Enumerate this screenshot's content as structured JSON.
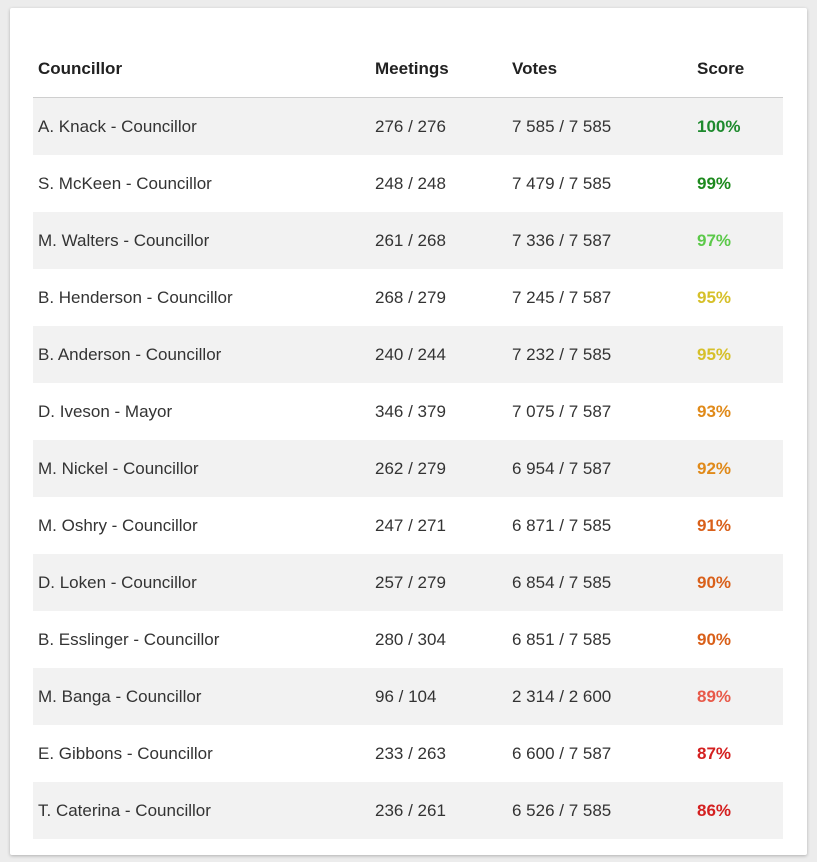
{
  "table": {
    "headers": {
      "councillor": "Councillor",
      "meetings": "Meetings",
      "votes": "Votes",
      "score": "Score"
    },
    "rows": [
      {
        "name": "A. Knack - Councillor",
        "meetings": "276 / 276",
        "votes": "7 585 / 7 585",
        "score": "100%",
        "score_color": "#1e8a2e"
      },
      {
        "name": "S. McKeen - Councillor",
        "meetings": "248 / 248",
        "votes": "7 479 / 7 585",
        "score": "99%",
        "score_color": "#1e8a1e"
      },
      {
        "name": "M. Walters - Councillor",
        "meetings": "261 / 268",
        "votes": "7 336 / 7 587",
        "score": "97%",
        "score_color": "#5cc94a"
      },
      {
        "name": "B. Henderson - Councillor",
        "meetings": "268 / 279",
        "votes": "7 245 / 7 587",
        "score": "95%",
        "score_color": "#d6c02a"
      },
      {
        "name": "B. Anderson - Councillor",
        "meetings": "240 / 244",
        "votes": "7 232 / 7 585",
        "score": "95%",
        "score_color": "#d6c02a"
      },
      {
        "name": "D. Iveson - Mayor",
        "meetings": "346 / 379",
        "votes": "7 075 / 7 587",
        "score": "93%",
        "score_color": "#e08a1a"
      },
      {
        "name": "M. Nickel - Councillor",
        "meetings": "262 / 279",
        "votes": "6 954 / 7 587",
        "score": "92%",
        "score_color": "#e08a1a"
      },
      {
        "name": "M. Oshry - Councillor",
        "meetings": "247 / 271",
        "votes": "6 871 / 7 585",
        "score": "91%",
        "score_color": "#d9601a"
      },
      {
        "name": "D. Loken - Councillor",
        "meetings": "257 / 279",
        "votes": "6 854 / 7 585",
        "score": "90%",
        "score_color": "#d9601a"
      },
      {
        "name": "B. Esslinger - Councillor",
        "meetings": "280 / 304",
        "votes": "6 851 / 7 585",
        "score": "90%",
        "score_color": "#d9601a"
      },
      {
        "name": "M. Banga - Councillor",
        "meetings": "96 / 104",
        "votes": "2 314 / 2 600",
        "score": "89%",
        "score_color": "#e85a4a"
      },
      {
        "name": "E. Gibbons - Councillor",
        "meetings": "233 / 263",
        "votes": "6 600 / 7 587",
        "score": "87%",
        "score_color": "#d42020"
      },
      {
        "name": "T. Caterina - Councillor",
        "meetings": "236 / 261",
        "votes": "6 526 / 7 585",
        "score": "86%",
        "score_color": "#d42020"
      }
    ]
  }
}
